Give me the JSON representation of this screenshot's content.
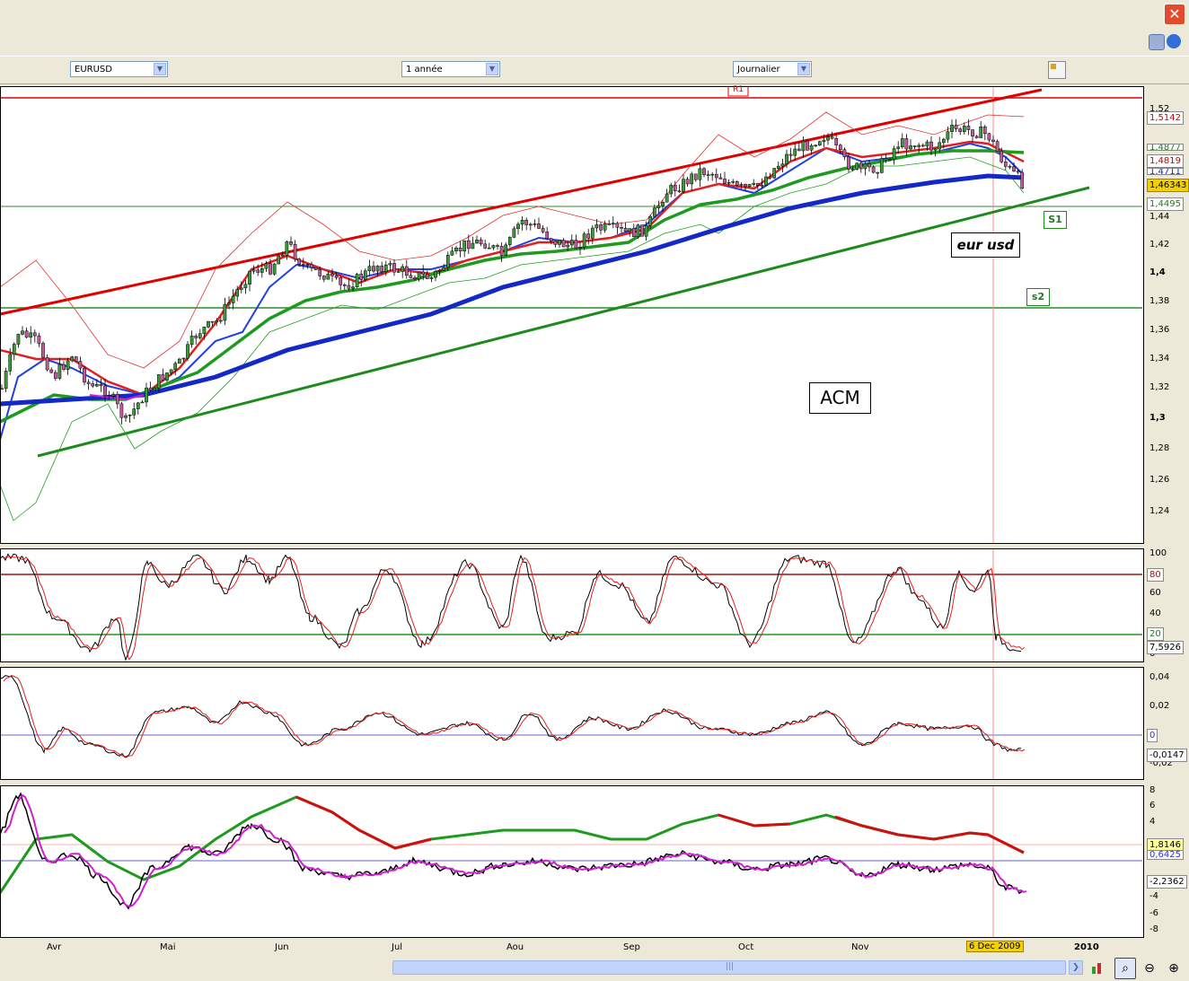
{
  "window": {
    "close_label": "✕"
  },
  "toolbar": {
    "symbol": "EURUSD",
    "period": "1 année",
    "interval": "Journalier"
  },
  "main_chart": {
    "label_r1": "R1",
    "label_s1": "S1",
    "label_s2": "s2",
    "label_instrument": "eur usd",
    "label_acm": "ACM",
    "price_ticks": [
      "1,52",
      "1,44",
      "1,42",
      "1,4",
      "1,38",
      "1,36",
      "1,34",
      "1,32",
      "1,3",
      "1,28",
      "1,26",
      "1,24"
    ],
    "tags": {
      "upper_band": "1,5142",
      "ma_red": "1,4819",
      "green_hidden": "1,4877",
      "blue_hidden": "1,4711",
      "last_price": "1,46343",
      "support": "1,4495"
    }
  },
  "stoch_panel": {
    "ticks": [
      "100",
      "80",
      "60",
      "40",
      "20",
      "0"
    ],
    "tags": {
      "level_high": "80",
      "level_low": "20",
      "value": "7,5926"
    }
  },
  "osc_panel": {
    "ticks": [
      "0,04",
      "0,02",
      "0",
      "-0,02"
    ],
    "tags": {
      "zero": "0",
      "value": "-0,0147"
    }
  },
  "macd_panel": {
    "ticks": [
      "8",
      "6",
      "4",
      "2",
      "0",
      "-2",
      "-4",
      "-6",
      "-8"
    ],
    "tags": {
      "value_a": "1,8146",
      "value_b": "0,6425",
      "value_c": "-2,2362"
    }
  },
  "x_axis": {
    "months": [
      "Avr",
      "Mai",
      "Jun",
      "Jul",
      "Aou",
      "Sep",
      "Oct",
      "Nov",
      "2010"
    ],
    "cursor_date": "6 Dec 2009"
  },
  "chart_data": {
    "type": "line",
    "title": "",
    "instrument": "eur usd",
    "xlabel": "",
    "ylabel": "",
    "ylim": [
      1.22,
      1.53
    ],
    "categories": [
      "Avr",
      "Mai",
      "Jun",
      "Jul",
      "Aou",
      "Sep",
      "Oct",
      "Nov",
      "Dec",
      "2010"
    ],
    "series": [
      {
        "values": [
          1.33,
          1.33,
          1.41,
          1.4,
          1.43,
          1.42,
          1.47,
          1.47,
          1.5,
          1.46
        ]
      },
      {
        "values": [
          1.31,
          1.32,
          1.35,
          1.37,
          1.39,
          1.41,
          1.43,
          1.45,
          1.47,
          1.47
        ]
      },
      {
        "values": [
          1.32,
          1.33,
          1.37,
          1.4,
          1.41,
          1.42,
          1.45,
          1.47,
          1.49,
          1.48
        ]
      }
    ],
    "levels": {
      "R1": 1.513,
      "S1": 1.4495,
      "s2": 1.375
    },
    "last_price": 1.46343,
    "grid": false
  }
}
